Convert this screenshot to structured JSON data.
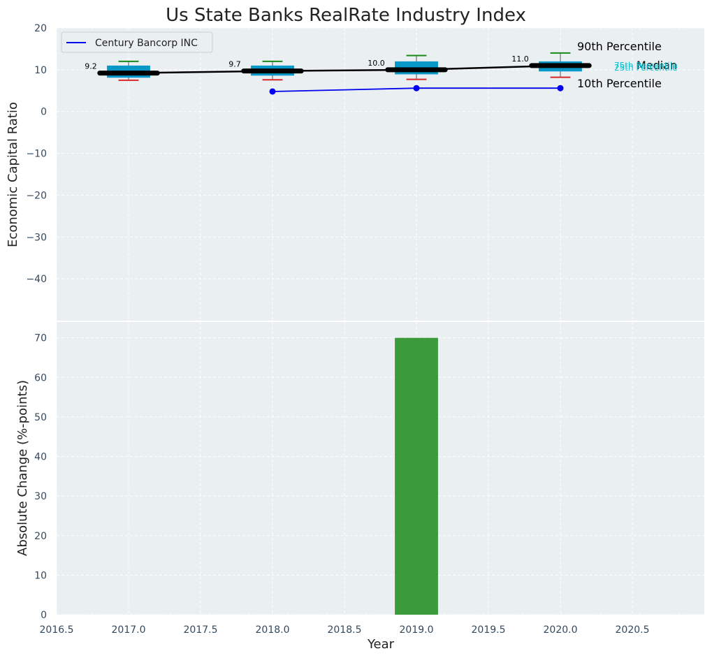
{
  "title": "Us State Banks RealRate Industry Index",
  "colors": {
    "background": "#ffffff",
    "panel": "#eaeff1",
    "grid": "#ffffff",
    "tick_text": "#34495e",
    "box": "#0798c8",
    "whisker_high": "#178a17",
    "whisker_low": "#d62728",
    "median": "#000000",
    "company": "#0000ee",
    "bar": "#3b9b3b",
    "percentile_label": "#17becf"
  },
  "chart_data": [
    {
      "type": "box",
      "ylabel": "Economic Capital Ratio",
      "ylim": [
        -50,
        20
      ],
      "yticks": [
        20,
        10,
        0,
        -10,
        -20,
        -30,
        -40
      ],
      "legend": {
        "position": "top-left",
        "label": "Century Bancorp INC"
      },
      "percentile_labels": {
        "p90": "90th Percentile",
        "median": "Median",
        "p75": "75th Percentile",
        "p25": "25th Percentile",
        "p10": "10th Percentile"
      },
      "years": [
        2017,
        2018,
        2019,
        2020
      ],
      "p10": [
        7.5,
        7.6,
        7.7,
        8.2
      ],
      "p25": [
        8.1,
        8.6,
        8.9,
        9.6
      ],
      "median": [
        9.2,
        9.7,
        10.0,
        11.0
      ],
      "p75": [
        11.0,
        11.0,
        12.0,
        12.0
      ],
      "p90": [
        12.0,
        12.0,
        13.4,
        14.0
      ],
      "median_labels": [
        "9.2",
        "9.7",
        "10.0",
        "11.0"
      ],
      "company": {
        "name": "Century Bancorp INC",
        "x": [
          2018,
          2019,
          2020
        ],
        "y": [
          4.8,
          5.6,
          5.6
        ]
      }
    },
    {
      "type": "bar",
      "ylabel": "Absolute Change (%-points)",
      "xlabel": "Year",
      "ylim": [
        0,
        74
      ],
      "yticks": [
        70,
        60,
        50,
        40,
        30,
        20,
        10,
        0
      ],
      "xlim": [
        2016.5,
        2021.0
      ],
      "xticks": [
        "2016.5",
        "2017.0",
        "2017.5",
        "2018.0",
        "2018.5",
        "2019.0",
        "2019.5",
        "2020.0",
        "2020.5"
      ],
      "x": [
        2019
      ],
      "values": [
        70
      ]
    }
  ]
}
